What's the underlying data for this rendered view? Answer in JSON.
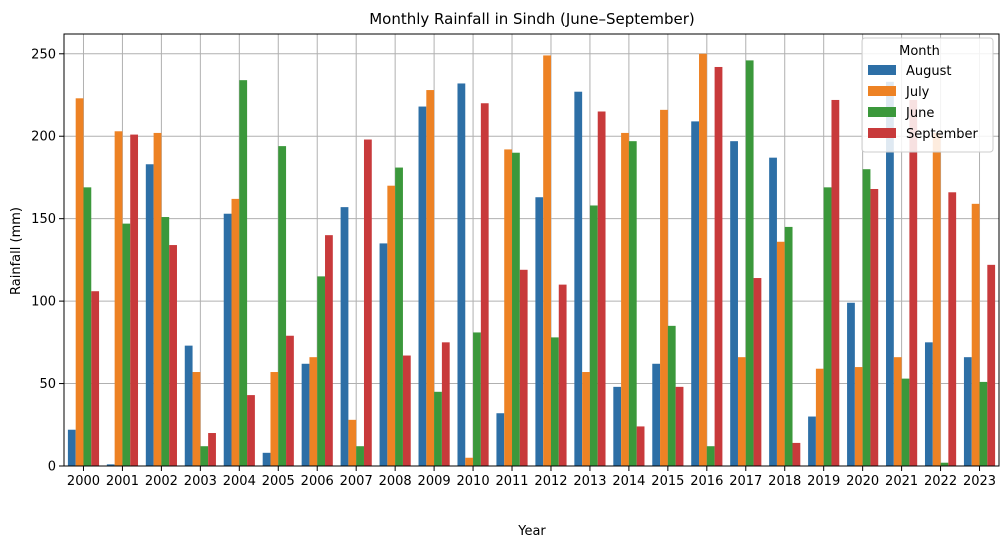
{
  "chart_data": {
    "type": "bar",
    "title": "Monthly Rainfall in Sindh (June–September)",
    "xlabel": "Year",
    "ylabel": "Rainfall (mm)",
    "ylim": [
      0,
      262
    ],
    "yticks": [
      0,
      50,
      100,
      150,
      200,
      250
    ],
    "grid": true,
    "legend_position": "top-right",
    "legend_title": "Month",
    "categories": [
      "2000",
      "2001",
      "2002",
      "2003",
      "2004",
      "2005",
      "2006",
      "2007",
      "2008",
      "2009",
      "2010",
      "2011",
      "2012",
      "2013",
      "2014",
      "2015",
      "2016",
      "2017",
      "2018",
      "2019",
      "2020",
      "2021",
      "2022",
      "2023"
    ],
    "series": [
      {
        "name": "August",
        "color": "#2d6fa6",
        "values": [
          22,
          1,
          183,
          73,
          153,
          8,
          62,
          157,
          135,
          218,
          232,
          32,
          163,
          227,
          48,
          62,
          209,
          197,
          187,
          30,
          99,
          233,
          75,
          66
        ]
      },
      {
        "name": "July",
        "color": "#ed8224",
        "values": [
          223,
          203,
          202,
          57,
          162,
          57,
          66,
          28,
          170,
          228,
          5,
          192,
          249,
          57,
          202,
          216,
          250,
          66,
          136,
          59,
          60,
          66,
          202,
          159
        ]
      },
      {
        "name": "June",
        "color": "#3b983b",
        "values": [
          169,
          147,
          151,
          12,
          234,
          194,
          115,
          12,
          181,
          45,
          81,
          190,
          78,
          158,
          197,
          85,
          12,
          246,
          145,
          169,
          180,
          53,
          2,
          51
        ]
      },
      {
        "name": "September",
        "color": "#c83a3b",
        "values": [
          106,
          201,
          134,
          20,
          43,
          79,
          140,
          198,
          67,
          75,
          220,
          119,
          110,
          215,
          24,
          48,
          242,
          114,
          14,
          222,
          168,
          222,
          166,
          122
        ]
      }
    ]
  }
}
